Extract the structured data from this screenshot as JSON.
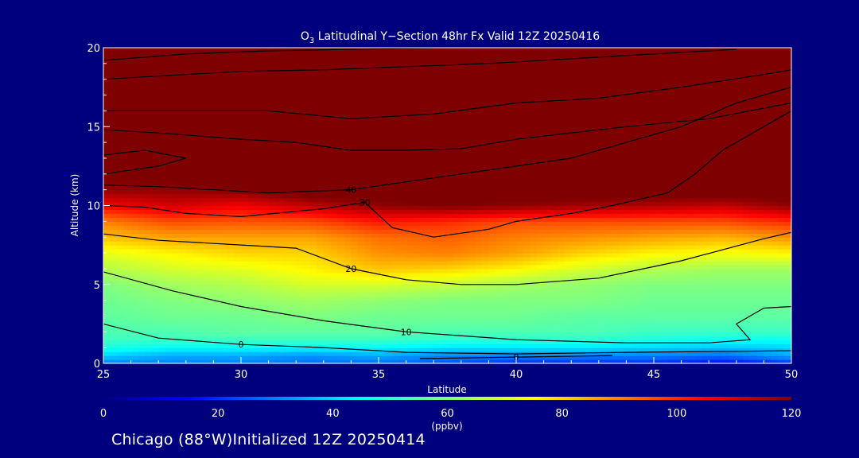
{
  "page": {
    "footer": "Chicago (88°W)Initialized 12Z 20250414"
  },
  "chart_data": {
    "type": "heatmap",
    "title_prefix": "O",
    "title_subscript": "3",
    "title_rest": " Latitudinal Y−Section 48hr  Fx Valid 12Z 20250416",
    "xlabel": "Latitude",
    "ylabel": "Altitude (km)",
    "xlim": [
      25,
      50
    ],
    "ylim": [
      0,
      20
    ],
    "x_ticks": [
      25,
      30,
      35,
      40,
      45,
      50
    ],
    "y_ticks": [
      0,
      5,
      10,
      15,
      20
    ],
    "colorbar": {
      "range": [
        0,
        120
      ],
      "ticks": [
        0,
        20,
        40,
        60,
        80,
        100,
        120
      ],
      "unit_label": "(ppbv)",
      "colors": [
        "#00007f",
        "#0000ff",
        "#0080ff",
        "#00ffff",
        "#80ff80",
        "#ffff00",
        "#ff8000",
        "#ff0000",
        "#7f0000"
      ]
    },
    "field": {
      "description_values_ppbv": "ozone mixing ratio on a latitude-altitude grid",
      "lat": [
        25,
        27.5,
        30,
        32.5,
        35,
        37.5,
        40,
        42.5,
        45,
        47.5,
        50
      ],
      "alt": [
        0,
        0.5,
        1,
        1.5,
        2,
        3,
        4,
        5,
        6,
        7,
        8,
        9,
        10,
        11,
        12,
        14,
        16,
        18,
        20
      ],
      "values": [
        [
          30,
          30,
          30,
          28,
          28,
          25,
          20,
          20,
          20,
          15,
          20
        ],
        [
          40,
          35,
          35,
          32,
          35,
          30,
          30,
          30,
          30,
          28,
          35
        ],
        [
          48,
          45,
          45,
          45,
          45,
          42,
          42,
          42,
          40,
          38,
          40
        ],
        [
          52,
          52,
          52,
          52,
          52,
          50,
          50,
          50,
          48,
          46,
          46
        ],
        [
          54,
          54,
          56,
          56,
          56,
          54,
          54,
          54,
          52,
          52,
          52
        ],
        [
          56,
          58,
          58,
          60,
          58,
          58,
          58,
          56,
          56,
          56,
          56
        ],
        [
          58,
          60,
          62,
          64,
          62,
          60,
          60,
          60,
          58,
          58,
          58
        ],
        [
          60,
          64,
          66,
          70,
          70,
          68,
          64,
          62,
          60,
          60,
          60
        ],
        [
          66,
          70,
          72,
          76,
          82,
          80,
          76,
          70,
          66,
          64,
          64
        ],
        [
          72,
          76,
          80,
          80,
          88,
          90,
          86,
          80,
          76,
          74,
          76
        ],
        [
          82,
          86,
          86,
          86,
          92,
          94,
          90,
          88,
          86,
          84,
          88
        ],
        [
          90,
          96,
          95,
          96,
          102,
          100,
          96,
          96,
          96,
          96,
          100
        ],
        [
          105,
          110,
          106,
          112,
          118,
          120,
          118,
          116,
          114,
          112,
          118
        ],
        [
          118,
          118,
          120,
          125,
          125,
          125,
          125,
          125,
          125,
          125,
          125
        ],
        [
          120,
          122,
          125,
          125,
          125,
          125,
          125,
          125,
          125,
          125,
          125
        ],
        [
          125,
          125,
          125,
          125,
          125,
          125,
          125,
          125,
          125,
          125,
          125
        ],
        [
          125,
          125,
          125,
          125,
          125,
          125,
          125,
          125,
          125,
          125,
          125
        ],
        [
          125,
          125,
          125,
          125,
          125,
          125,
          125,
          125,
          125,
          125,
          125
        ],
        [
          125,
          125,
          125,
          125,
          125,
          125,
          125,
          125,
          125,
          125,
          125
        ]
      ]
    },
    "contours": [
      {
        "label": "0",
        "points": [
          [
            25,
            2.5
          ],
          [
            27,
            1.6
          ],
          [
            30,
            1.2
          ],
          [
            33,
            1.0
          ],
          [
            36,
            0.7
          ],
          [
            40,
            0.6
          ],
          [
            44,
            0.7
          ],
          [
            50,
            0.8
          ]
        ]
      },
      {
        "label": "0",
        "points": [
          [
            36.5,
            0.3
          ],
          [
            40,
            0.4
          ],
          [
            43.5,
            0.5
          ]
        ]
      },
      {
        "label": "10",
        "points": [
          [
            25,
            5.8
          ],
          [
            27.5,
            4.6
          ],
          [
            30,
            3.6
          ],
          [
            33,
            2.7
          ],
          [
            36,
            2.0
          ],
          [
            40,
            1.5
          ],
          [
            44,
            1.3
          ],
          [
            47,
            1.3
          ],
          [
            48.5,
            1.5
          ],
          [
            48,
            2.5
          ],
          [
            49,
            3.5
          ],
          [
            50,
            3.6
          ]
        ]
      },
      {
        "label": "20",
        "points": [
          [
            25,
            8.2
          ],
          [
            27,
            7.8
          ],
          [
            30,
            7.5
          ],
          [
            32,
            7.3
          ],
          [
            34,
            6.0
          ],
          [
            36,
            5.3
          ],
          [
            38,
            5.0
          ],
          [
            40,
            5.0
          ],
          [
            43,
            5.4
          ],
          [
            46,
            6.5
          ],
          [
            49,
            7.9
          ],
          [
            50,
            8.3
          ]
        ]
      },
      {
        "label": "30",
        "points": [
          [
            25,
            10.0
          ],
          [
            26.5,
            9.9
          ],
          [
            28,
            9.5
          ],
          [
            30,
            9.3
          ],
          [
            33,
            9.8
          ],
          [
            34.5,
            10.2
          ],
          [
            35.5,
            8.6
          ],
          [
            37,
            8.0
          ],
          [
            39,
            8.5
          ],
          [
            40,
            9.0
          ],
          [
            42,
            9.5
          ],
          [
            43.5,
            10.0
          ],
          [
            45.5,
            10.8
          ],
          [
            46.5,
            12.0
          ],
          [
            47.5,
            13.5
          ],
          [
            49,
            15.0
          ],
          [
            50,
            16.0
          ]
        ]
      },
      {
        "label": "40",
        "points": [
          [
            25,
            11.3
          ],
          [
            27,
            11.2
          ],
          [
            29,
            11.0
          ],
          [
            31,
            10.8
          ],
          [
            34,
            11.0
          ],
          [
            36,
            11.5
          ],
          [
            38,
            12.0
          ],
          [
            40,
            12.5
          ],
          [
            42,
            13.0
          ],
          [
            44,
            14.0
          ],
          [
            46,
            15.0
          ],
          [
            48,
            16.5
          ],
          [
            50,
            17.5
          ]
        ]
      },
      {
        "label": "",
        "points": [
          [
            25,
            12.0
          ],
          [
            27,
            12.5
          ],
          [
            28,
            13.0
          ],
          [
            26.5,
            13.5
          ],
          [
            25,
            13.2
          ]
        ]
      },
      {
        "label": "",
        "points": [
          [
            25,
            14.8
          ],
          [
            27,
            14.6
          ],
          [
            30,
            14.2
          ],
          [
            32,
            14.0
          ],
          [
            34,
            13.5
          ],
          [
            36,
            13.5
          ],
          [
            38,
            13.6
          ],
          [
            40,
            14.2
          ],
          [
            42,
            14.6
          ],
          [
            44,
            15.0
          ],
          [
            47,
            15.5
          ],
          [
            50,
            16.5
          ]
        ]
      },
      {
        "label": "",
        "points": [
          [
            25,
            16.0
          ],
          [
            28,
            16.0
          ],
          [
            31,
            16.0
          ],
          [
            34,
            15.5
          ],
          [
            37,
            15.8
          ],
          [
            40,
            16.5
          ],
          [
            43,
            16.8
          ],
          [
            46,
            17.5
          ],
          [
            49,
            18.3
          ],
          [
            50,
            18.6
          ]
        ]
      },
      {
        "label": "",
        "points": [
          [
            25,
            18.0
          ],
          [
            27,
            18.2
          ],
          [
            30,
            18.5
          ],
          [
            33,
            18.6
          ],
          [
            36,
            18.8
          ],
          [
            39,
            19.0
          ],
          [
            42,
            19.3
          ],
          [
            45,
            19.6
          ],
          [
            48,
            19.9
          ]
        ]
      },
      {
        "label": "",
        "points": [
          [
            25,
            19.2
          ],
          [
            28,
            19.6
          ],
          [
            31,
            19.8
          ],
          [
            34,
            19.9
          ],
          [
            37,
            20.0
          ]
        ]
      }
    ]
  }
}
